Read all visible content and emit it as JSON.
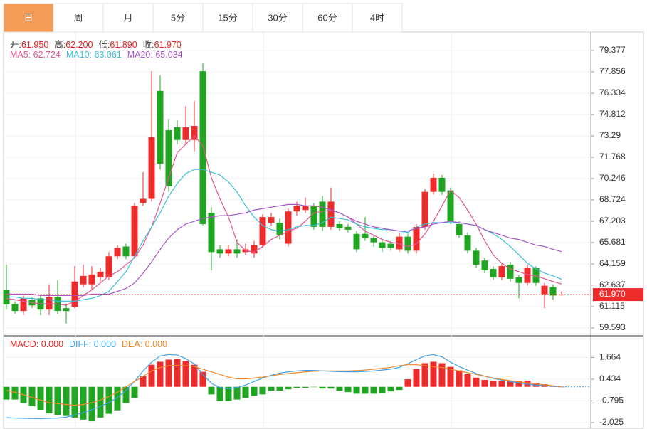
{
  "tabs": [
    "日",
    "周",
    "月",
    "5分",
    "15分",
    "30分",
    "60分",
    "4时"
  ],
  "selected_tab": 0,
  "tab_color": "#f49b57",
  "chart_data": [
    {
      "type": "candlestick",
      "header": [
        {
          "label": "开:",
          "value": "61.950"
        },
        {
          "label": "高:",
          "value": "62.200"
        },
        {
          "label": "低:",
          "value": "61.890"
        },
        {
          "label": "收:",
          "value": "61.970"
        }
      ],
      "header_value_color": "#e8201f",
      "open": [
        62.28,
        61.3,
        60.8,
        61.6,
        61.7,
        60.9,
        61.8,
        61.0,
        61.1,
        62.7,
        62.7,
        63.2,
        63.2,
        64.7,
        65.4,
        64.7,
        68.5,
        68.8,
        76.5,
        73.7,
        73.9,
        73.0,
        73.0,
        77.9,
        67.8,
        65.2,
        64.9,
        65.2,
        65.0,
        64.9,
        65.5,
        67.1,
        67.1,
        65.6,
        67.9,
        68.0,
        68.3,
        68.6,
        66.8,
        67.0,
        66.8,
        66.3,
        66.3,
        66.0,
        65.7,
        65.6,
        65.2,
        66.1,
        65.1,
        66.8,
        69.3,
        70.3,
        69.4,
        67.0,
        66.2,
        65.1,
        64.4,
        63.8,
        63.2,
        64.1,
        63.2,
        62.8,
        63.9,
        62.0,
        62.5,
        61.95
      ],
      "high": [
        64.1,
        61.5,
        61.9,
        61.8,
        62.0,
        62.7,
        63.0,
        61.3,
        64.0,
        64.1,
        64.0,
        63.9,
        65.0,
        65.5,
        65.6,
        68.5,
        70.7,
        77.9,
        77.6,
        74.5,
        74.4,
        75.4,
        75.8,
        78.5,
        68.2,
        65.5,
        65.5,
        65.9,
        65.6,
        65.8,
        67.7,
        67.8,
        67.4,
        68.1,
        68.6,
        68.9,
        68.5,
        69.0,
        69.6,
        67.2,
        67.0,
        66.5,
        67.5,
        66.2,
        65.9,
        65.8,
        66.4,
        66.3,
        67.0,
        69.5,
        70.6,
        70.5,
        69.6,
        67.2,
        66.4,
        65.3,
        64.6,
        64.0,
        64.2,
        64.3,
        63.4,
        64.1,
        64.0,
        62.8,
        62.7,
        62.2
      ],
      "low": [
        60.9,
        60.6,
        60.5,
        61.0,
        60.5,
        60.5,
        60.6,
        59.9,
        61.0,
        62.5,
        62.3,
        62.9,
        63.0,
        64.5,
        64.5,
        64.6,
        68.3,
        68.6,
        70.9,
        69.3,
        72.7,
        72.7,
        72.2,
        66.9,
        63.7,
        64.6,
        64.7,
        64.6,
        64.8,
        64.6,
        65.3,
        66.9,
        65.9,
        65.4,
        67.6,
        67.8,
        66.6,
        66.5,
        66.6,
        66.5,
        66.4,
        65.0,
        65.8,
        65.4,
        65.0,
        65.1,
        65.0,
        64.9,
        64.9,
        66.6,
        69.1,
        69.1,
        67.0,
        66.0,
        64.9,
        63.9,
        63.5,
        63.0,
        63.0,
        62.9,
        61.7,
        62.6,
        62.6,
        61.0,
        61.6,
        61.89
      ],
      "close": [
        61.27,
        60.8,
        61.7,
        61.2,
        60.9,
        61.8,
        60.8,
        60.8,
        62.9,
        63.3,
        63.4,
        63.6,
        64.7,
        65.3,
        64.7,
        68.3,
        68.8,
        73.2,
        71.3,
        69.7,
        73.0,
        73.9,
        74.0,
        67.0,
        65.0,
        64.9,
        65.2,
        64.9,
        65.2,
        65.5,
        67.5,
        67.5,
        66.2,
        67.9,
        68.3,
        68.3,
        66.8,
        66.8,
        68.6,
        66.7,
        66.6,
        65.2,
        66.0,
        65.7,
        65.3,
        65.3,
        66.1,
        65.1,
        66.8,
        69.3,
        70.3,
        69.3,
        67.2,
        66.2,
        65.1,
        64.1,
        63.7,
        63.2,
        64.0,
        63.1,
        62.8,
        63.9,
        62.8,
        62.6,
        61.9,
        61.97
      ],
      "up_color": "#ee2b2b",
      "down_color": "#1fa51f",
      "series": [
        {
          "name": "MA5: 62.724",
          "color": "#e0558f",
          "values": [
            61.7,
            61.6,
            61.5,
            61.4,
            61.3,
            61.3,
            61.3,
            61.2,
            61.5,
            61.9,
            62.3,
            62.8,
            63.3,
            63.6,
            64.1,
            64.6,
            65.5,
            66.8,
            68.5,
            70.3,
            72.1,
            72.7,
            73.3,
            72.6,
            70.3,
            68.8,
            67.5,
            65.7,
            65.1,
            65.0,
            65.4,
            65.9,
            66.2,
            66.5,
            66.7,
            67.2,
            67.8,
            67.9,
            68.0,
            67.8,
            67.5,
            67.0,
            66.5,
            66.2,
            65.9,
            65.7,
            65.6,
            65.4,
            65.6,
            66.3,
            67.2,
            68.3,
            69.4,
            68.9,
            68.0,
            67.0,
            65.8,
            64.8,
            64.2,
            63.8,
            63.6,
            63.4,
            63.3,
            63.1,
            62.9,
            62.724
          ]
        },
        {
          "name": "MA10: 63.061",
          "color": "#3cbfd6",
          "values": [
            61.8,
            61.8,
            61.7,
            61.7,
            61.6,
            61.6,
            61.5,
            61.5,
            61.5,
            61.6,
            61.7,
            61.9,
            62.2,
            62.9,
            63.6,
            64.7,
            65.8,
            66.8,
            67.8,
            69.0,
            69.9,
            70.6,
            70.9,
            70.9,
            70.7,
            70.5,
            70.0,
            69.3,
            68.3,
            67.5,
            66.9,
            66.6,
            66.5,
            66.6,
            66.8,
            66.9,
            66.9,
            67.1,
            67.5,
            67.4,
            67.3,
            67.0,
            66.8,
            66.7,
            66.6,
            66.6,
            66.5,
            66.4,
            66.8,
            67.0,
            67.1,
            67.1,
            67.1,
            67.1,
            67.0,
            66.9,
            66.6,
            66.3,
            65.9,
            65.4,
            64.8,
            64.2,
            63.8,
            63.5,
            63.3,
            63.061
          ]
        },
        {
          "name": "MA20: 65.034",
          "color": "#a855c8",
          "values": [
            62.0,
            62.0,
            62.0,
            62.0,
            61.9,
            61.9,
            61.9,
            61.9,
            61.9,
            61.9,
            62.0,
            62.0,
            62.0,
            62.2,
            62.4,
            62.8,
            63.5,
            64.3,
            65.2,
            66.0,
            66.6,
            67.0,
            67.2,
            67.4,
            67.5,
            67.6,
            67.6,
            67.7,
            67.8,
            68.0,
            68.1,
            68.2,
            68.3,
            68.4,
            68.4,
            68.3,
            68.3,
            68.2,
            68.0,
            67.8,
            67.5,
            67.2,
            67.0,
            66.8,
            66.7,
            66.6,
            66.5,
            66.5,
            66.7,
            66.8,
            67.0,
            67.1,
            67.2,
            67.1,
            67.0,
            66.9,
            66.6,
            66.4,
            66.2,
            66.0,
            65.9,
            65.7,
            65.5,
            65.4,
            65.2,
            65.034
          ]
        }
      ],
      "ylim": [
        59.03,
        80.7
      ],
      "yticks": [
        79.377,
        77.856,
        76.334,
        74.812,
        73.29,
        {
          "value": 73.29,
          "label": "73.290"
        },
        71.768,
        70.246,
        68.724,
        67.203,
        65.681,
        64.159,
        62.637,
        61.115,
        59.593
      ],
      "grid": true,
      "last_price": 61.97,
      "last_price_label": "61.970",
      "last_price_color": "#ee2b2b"
    },
    {
      "type": "macd",
      "series": [
        {
          "name": "MACD: 0.000",
          "kind": "histogram",
          "color": "#e8201f",
          "up_color": "#ee2b2b",
          "down_color": "#1fa51f",
          "values": [
            -0.72,
            -0.72,
            -0.92,
            -1.1,
            -1.3,
            -1.5,
            -1.6,
            -1.65,
            -1.74,
            -1.86,
            -1.95,
            -1.74,
            -1.53,
            -1.33,
            -0.92,
            -0.63,
            0.6,
            1.25,
            1.42,
            1.54,
            1.58,
            1.46,
            1.25,
            0.85,
            -0.43,
            -0.8,
            -0.8,
            -0.72,
            -0.63,
            -0.51,
            -0.43,
            -0.22,
            -0.22,
            -0.14,
            -0.06,
            -0.06,
            -0.02,
            -0.1,
            -0.1,
            -0.22,
            -0.3,
            -0.39,
            -0.39,
            -0.39,
            -0.35,
            -0.26,
            -0.18,
            0.43,
            1.0,
            1.34,
            1.42,
            1.34,
            1.13,
            0.93,
            0.72,
            0.52,
            0.39,
            0.35,
            0.31,
            0.31,
            0.31,
            0.35,
            0.23,
            0.15,
            0.07,
            0.0
          ]
        },
        {
          "name": "DIFF: 0.000",
          "kind": "line",
          "color": "#3fa0e8",
          "values": [
            -1.75,
            -1.77,
            -1.78,
            -1.79,
            -1.8,
            -1.78,
            -1.77,
            -1.72,
            -1.6,
            -1.46,
            -1.3,
            -1.1,
            -0.9,
            -0.6,
            -0.2,
            0.3,
            0.9,
            1.4,
            1.75,
            1.83,
            1.8,
            1.6,
            1.3,
            0.7,
            0.2,
            -0.05,
            -0.1,
            -0.05,
            0.1,
            0.3,
            0.5,
            0.65,
            0.78,
            0.85,
            0.9,
            0.93,
            0.93,
            0.9,
            0.88,
            0.86,
            0.85,
            0.85,
            0.87,
            0.9,
            0.95,
            1.0,
            1.1,
            1.3,
            1.55,
            1.75,
            1.83,
            1.7,
            1.4,
            1.15,
            0.95,
            0.75,
            0.6,
            0.48,
            0.38,
            0.3,
            0.22,
            0.15,
            0.1,
            0.06,
            0.03,
            0.0
          ]
        },
        {
          "name": "DEA: 0.000",
          "kind": "line",
          "color": "#f08a2a",
          "values": [
            -0.2,
            -0.3,
            -0.45,
            -0.6,
            -0.75,
            -0.9,
            -0.95,
            -1.0,
            -1.05,
            -1.0,
            -0.9,
            -0.75,
            -0.55,
            -0.3,
            0.0,
            0.3,
            0.6,
            0.9,
            1.1,
            1.2,
            1.22,
            1.2,
            1.15,
            1.0,
            0.85,
            0.7,
            0.55,
            0.45,
            0.45,
            0.5,
            0.55,
            0.62,
            0.7,
            0.75,
            0.8,
            0.85,
            0.88,
            0.9,
            0.9,
            0.9,
            0.9,
            0.92,
            0.95,
            1.0,
            1.05,
            1.1,
            1.2,
            1.25,
            1.25,
            1.2,
            1.15,
            1.1,
            1.0,
            0.9,
            0.8,
            0.7,
            0.6,
            0.5,
            0.42,
            0.35,
            0.28,
            0.22,
            0.17,
            0.12,
            0.06,
            0.0
          ]
        }
      ],
      "ylim": [
        -2.35,
        2.77
      ],
      "yticks": [
        1.664,
        0.434,
        -0.795,
        -2.025
      ],
      "grid": true
    }
  ]
}
